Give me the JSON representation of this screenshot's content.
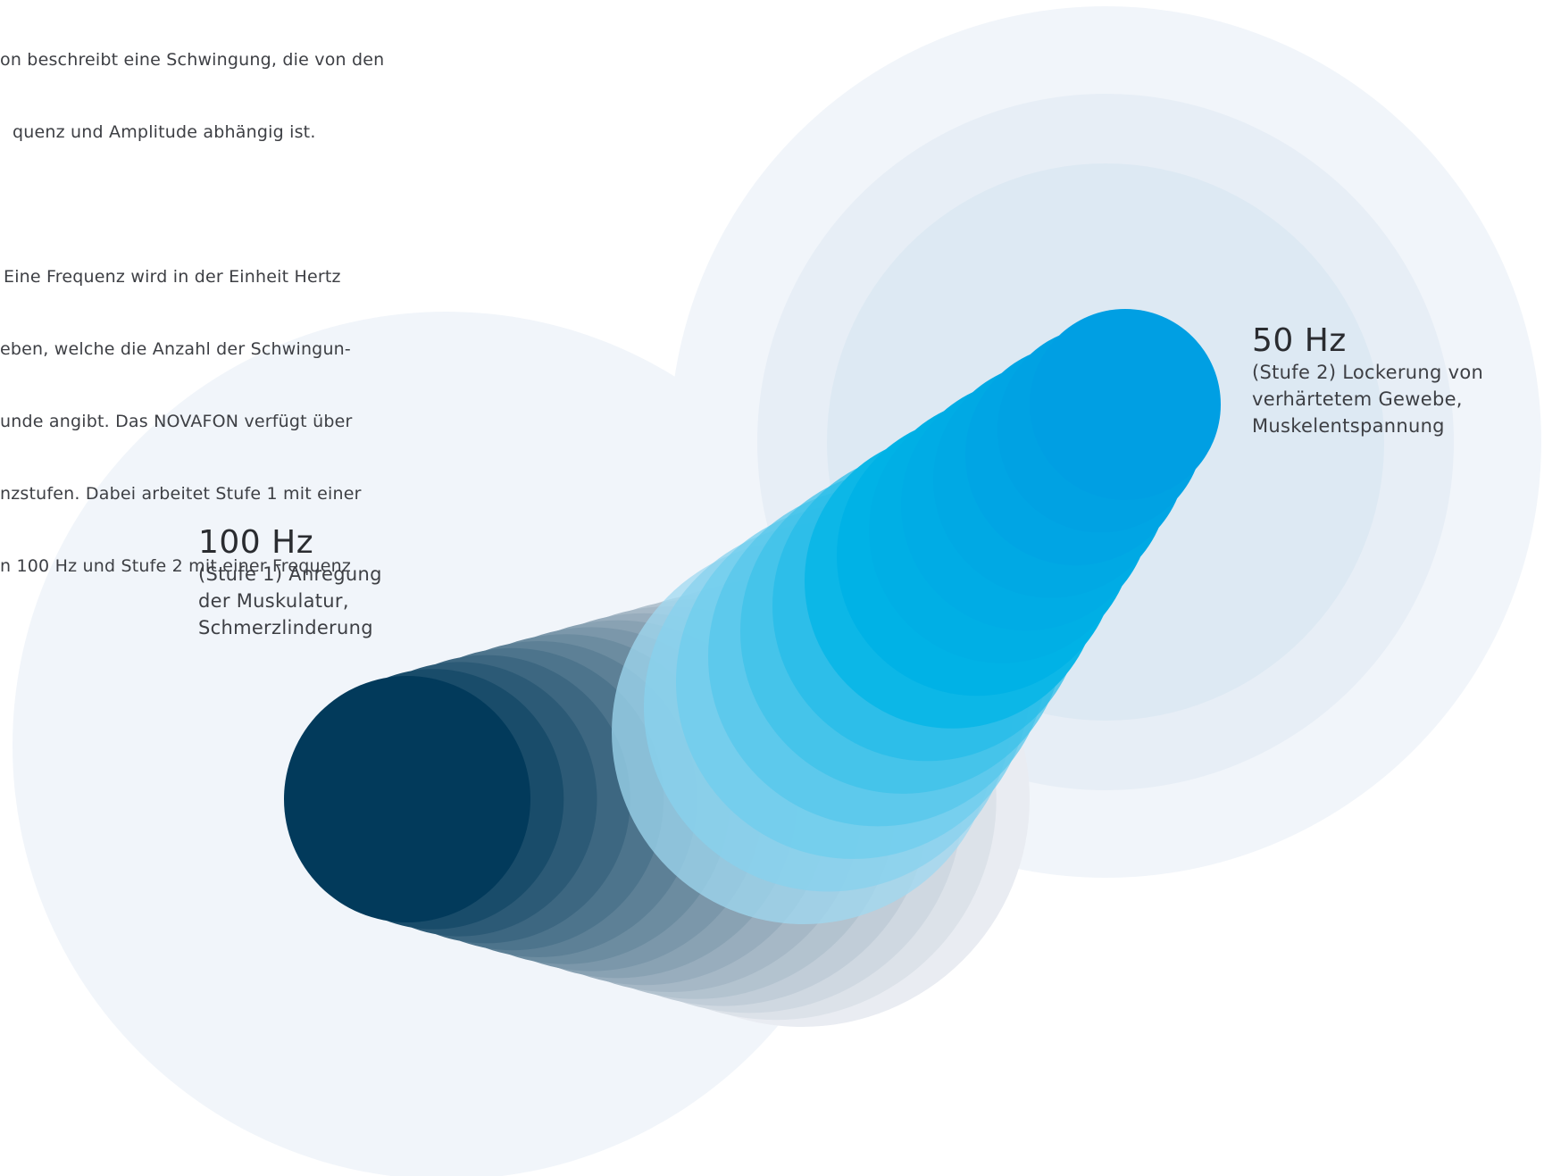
{
  "intro": {
    "paragraph1": [
      "on beschreibt eine Schwingung, die von den",
      "quenz und Amplitude abhängig ist."
    ],
    "paragraph2": [
      "Eine Frequenz wird in der Einheit Hertz",
      "eben, welche die Anzahl der Schwingun-",
      "unde angibt. Das NOVAFON verfügt über",
      "nzstufen. Dabei arbeitet Stufe 1 mit einer",
      "n 100 Hz und Stufe 2 mit einer Frequenz"
    ]
  },
  "levels": {
    "stufe1": {
      "title": "100 Hz",
      "description": "(Stufe 1) Anregung\nder Muskulatur,\nSchmerzlinderung",
      "color": "#023a5b"
    },
    "stufe2": {
      "title": "50 Hz",
      "description": "(Stufe 2) Lockerung von\nverhärtetem Gewebe,\nMuskelentspannung",
      "color": "#009fe3"
    }
  },
  "colors": {
    "halo_outer": "#f1f5fa",
    "halo_mid": "#e7eef6",
    "halo_inner": "#dde9f3",
    "fade_end": "#e9ecf2"
  }
}
